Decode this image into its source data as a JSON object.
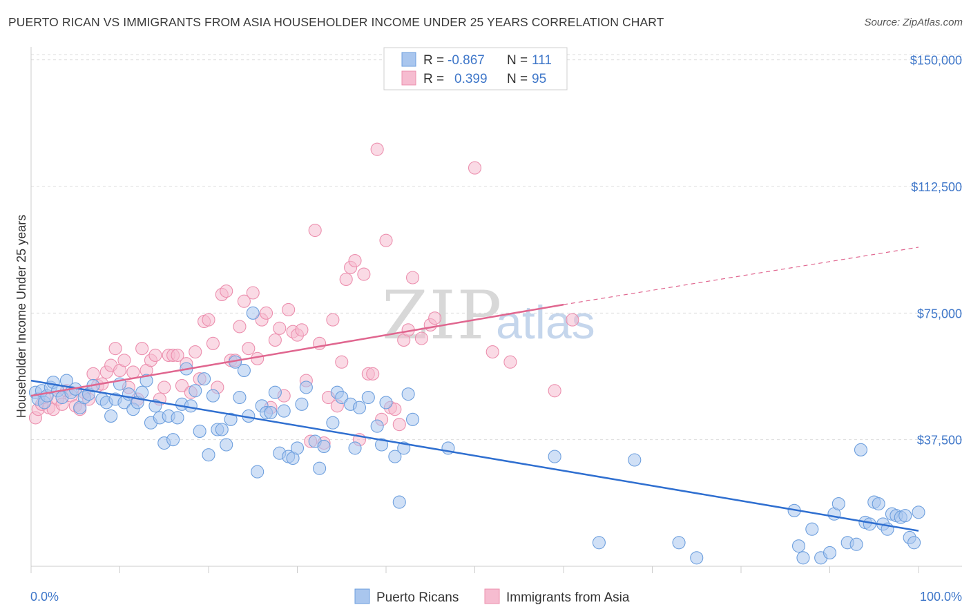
{
  "header": {
    "title": "PUERTO RICAN VS IMMIGRANTS FROM ASIA HOUSEHOLDER INCOME UNDER 25 YEARS CORRELATION CHART",
    "source": "Source: ZipAtlas.com"
  },
  "watermark": {
    "part1": "ZIP",
    "part2": "atlas"
  },
  "legend": {
    "rows": [
      {
        "r_label": "R =",
        "r_value": "-0.867",
        "n_label": "N =",
        "n_value": "111"
      },
      {
        "r_label": "R =",
        "r_value": "0.399",
        "n_label": "N =",
        "n_value": "95"
      }
    ]
  },
  "bottom_legend": {
    "series1": "Puerto Ricans",
    "series2": "Immigrants from Asia"
  },
  "chart_data": {
    "type": "scatter",
    "title": "PUERTO RICAN VS IMMIGRANTS FROM ASIA HOUSEHOLDER INCOME UNDER 25 YEARS CORRELATION CHART",
    "xlabel": "",
    "ylabel": "Householder Income Under 25 years",
    "xlim": [
      0,
      100
    ],
    "ylim": [
      0,
      153000
    ],
    "x_tick_labels": [
      "0.0%",
      "100.0%"
    ],
    "y_ticks": [
      37500,
      75000,
      112500,
      150000
    ],
    "y_tick_labels": [
      "$37,500",
      "$75,000",
      "$112,500",
      "$150,000"
    ],
    "grid": true,
    "colors": {
      "blue_fill": "#a9c6ee",
      "blue_stroke": "#6d9fde",
      "blue_line": "#2f6fd0",
      "pink_fill": "#f6bcd0",
      "pink_stroke": "#ec8fae",
      "pink_line": "#e0668f"
    },
    "series": [
      {
        "name": "Puerto Ricans",
        "color": "#6d9fde",
        "trend": {
          "x": [
            0,
            100
          ],
          "y": [
            55000,
            10500
          ]
        },
        "points": [
          [
            0.5,
            51500
          ],
          [
            0.8,
            49500
          ],
          [
            1.2,
            52000
          ],
          [
            1.5,
            48500
          ],
          [
            1.8,
            50500
          ],
          [
            2.2,
            53000
          ],
          [
            2.5,
            54500
          ],
          [
            3,
            52000
          ],
          [
            3.5,
            50000
          ],
          [
            4,
            55000
          ],
          [
            4.5,
            51500
          ],
          [
            5,
            52500
          ],
          [
            5.5,
            47000
          ],
          [
            6,
            50000
          ],
          [
            6.5,
            51000
          ],
          [
            7,
            53500
          ],
          [
            8,
            49500
          ],
          [
            8.5,
            48500
          ],
          [
            9,
            44500
          ],
          [
            9.5,
            49500
          ],
          [
            10,
            54000
          ],
          [
            10.5,
            48500
          ],
          [
            11,
            51000
          ],
          [
            11.5,
            46500
          ],
          [
            12,
            48500
          ],
          [
            12.5,
            51500
          ],
          [
            13,
            55000
          ],
          [
            13.5,
            42500
          ],
          [
            14,
            47500
          ],
          [
            14.5,
            44000
          ],
          [
            15,
            36500
          ],
          [
            15.5,
            44500
          ],
          [
            16,
            37500
          ],
          [
            16.5,
            44000
          ],
          [
            17,
            48000
          ],
          [
            17.5,
            58500
          ],
          [
            18,
            47500
          ],
          [
            18.5,
            52000
          ],
          [
            19,
            40000
          ],
          [
            19.5,
            55500
          ],
          [
            20,
            33000
          ],
          [
            20.5,
            50500
          ],
          [
            21,
            40500
          ],
          [
            21.5,
            40500
          ],
          [
            22,
            36000
          ],
          [
            22.5,
            43500
          ],
          [
            23,
            60500
          ],
          [
            23.5,
            50000
          ],
          [
            24,
            58000
          ],
          [
            24.5,
            44500
          ],
          [
            25,
            75000
          ],
          [
            25.5,
            28000
          ],
          [
            26,
            47500
          ],
          [
            26.5,
            45500
          ],
          [
            27,
            45500
          ],
          [
            27.5,
            51500
          ],
          [
            28,
            33500
          ],
          [
            28.5,
            46000
          ],
          [
            29,
            32500
          ],
          [
            29.5,
            32000
          ],
          [
            30,
            35000
          ],
          [
            30.5,
            48000
          ],
          [
            31,
            53000
          ],
          [
            32,
            37000
          ],
          [
            32.5,
            29000
          ],
          [
            33,
            35500
          ],
          [
            34,
            42500
          ],
          [
            34.5,
            51500
          ],
          [
            35,
            50000
          ],
          [
            36,
            48000
          ],
          [
            36.5,
            35000
          ],
          [
            37,
            47000
          ],
          [
            38,
            50000
          ],
          [
            39,
            41500
          ],
          [
            39.5,
            36000
          ],
          [
            40,
            48500
          ],
          [
            41,
            32500
          ],
          [
            41.5,
            19000
          ],
          [
            42,
            35000
          ],
          [
            42.5,
            51000
          ],
          [
            43,
            43500
          ],
          [
            47,
            35000
          ],
          [
            59,
            32500
          ],
          [
            64,
            7000
          ],
          [
            68,
            31500
          ],
          [
            73,
            7000
          ],
          [
            75,
            2500
          ],
          [
            86,
            16500
          ],
          [
            86.5,
            6000
          ],
          [
            87,
            2500
          ],
          [
            88,
            11000
          ],
          [
            89,
            2500
          ],
          [
            90,
            4000
          ],
          [
            90.5,
            15500
          ],
          [
            91,
            18500
          ],
          [
            92,
            7000
          ],
          [
            93,
            6500
          ],
          [
            93.5,
            34500
          ],
          [
            94,
            13000
          ],
          [
            94.5,
            12500
          ],
          [
            95,
            19000
          ],
          [
            95.5,
            18500
          ],
          [
            96,
            12500
          ],
          [
            96.5,
            11000
          ],
          [
            97,
            15500
          ],
          [
            97.5,
            15000
          ],
          [
            98,
            14500
          ],
          [
            98.5,
            15000
          ],
          [
            99,
            8500
          ],
          [
            99.5,
            7000
          ],
          [
            100,
            16000
          ]
        ]
      },
      {
        "name": "Immigrants from Asia",
        "color": "#ec8fae",
        "trend": {
          "x": [
            0,
            60
          ],
          "y": [
            50500,
            77500
          ]
        },
        "dashed_extension": {
          "x": [
            60,
            100
          ],
          "y": [
            77500,
            94500
          ]
        },
        "points": [
          [
            0.5,
            44000
          ],
          [
            0.8,
            46500
          ],
          [
            1.2,
            48000
          ],
          [
            1.5,
            50000
          ],
          [
            2,
            47000
          ],
          [
            2.5,
            46500
          ],
          [
            3,
            49500
          ],
          [
            3.5,
            48000
          ],
          [
            4,
            52000
          ],
          [
            4.5,
            50500
          ],
          [
            5,
            47500
          ],
          [
            5.5,
            46500
          ],
          [
            6,
            51500
          ],
          [
            6.5,
            49500
          ],
          [
            7,
            57000
          ],
          [
            7.5,
            53500
          ],
          [
            8,
            54000
          ],
          [
            8.5,
            57500
          ],
          [
            9,
            59500
          ],
          [
            9.5,
            64500
          ],
          [
            10,
            58000
          ],
          [
            10.5,
            61000
          ],
          [
            11,
            53000
          ],
          [
            11.5,
            57500
          ],
          [
            12,
            49500
          ],
          [
            12.5,
            64500
          ],
          [
            13,
            58000
          ],
          [
            13.5,
            61000
          ],
          [
            14,
            62500
          ],
          [
            14.5,
            49500
          ],
          [
            15,
            53000
          ],
          [
            15.5,
            62500
          ],
          [
            16,
            62500
          ],
          [
            16.5,
            62500
          ],
          [
            17,
            53500
          ],
          [
            17.5,
            60000
          ],
          [
            18,
            51500
          ],
          [
            18.5,
            63500
          ],
          [
            19,
            55500
          ],
          [
            19.5,
            72500
          ],
          [
            20,
            73000
          ],
          [
            20.5,
            66000
          ],
          [
            21,
            53000
          ],
          [
            21.5,
            80500
          ],
          [
            22,
            81500
          ],
          [
            22.5,
            61000
          ],
          [
            23,
            61000
          ],
          [
            23.5,
            71000
          ],
          [
            24,
            78500
          ],
          [
            24.5,
            64500
          ],
          [
            25,
            81000
          ],
          [
            25.5,
            61500
          ],
          [
            26,
            73000
          ],
          [
            26.5,
            75000
          ],
          [
            27,
            47000
          ],
          [
            27.5,
            67000
          ],
          [
            28,
            70500
          ],
          [
            28.5,
            50500
          ],
          [
            29,
            76000
          ],
          [
            29.5,
            69500
          ],
          [
            30,
            68500
          ],
          [
            30.5,
            70000
          ],
          [
            31,
            55000
          ],
          [
            31.5,
            37000
          ],
          [
            32,
            99500
          ],
          [
            32.5,
            66000
          ],
          [
            33,
            36500
          ],
          [
            33.5,
            50000
          ],
          [
            34,
            73000
          ],
          [
            34.5,
            47500
          ],
          [
            35,
            60500
          ],
          [
            35.5,
            85000
          ],
          [
            36,
            88500
          ],
          [
            36.5,
            90500
          ],
          [
            37,
            37500
          ],
          [
            37.5,
            86500
          ],
          [
            38,
            57000
          ],
          [
            38.5,
            57000
          ],
          [
            39,
            123500
          ],
          [
            39.5,
            43500
          ],
          [
            40,
            96500
          ],
          [
            40.5,
            47000
          ],
          [
            41,
            46500
          ],
          [
            41.5,
            42000
          ],
          [
            42,
            67000
          ],
          [
            42.5,
            70000
          ],
          [
            43,
            85500
          ],
          [
            44,
            67500
          ],
          [
            45,
            71500
          ],
          [
            45.5,
            73500
          ],
          [
            50,
            118000
          ],
          [
            52,
            63500
          ],
          [
            54,
            60500
          ],
          [
            59,
            52000
          ],
          [
            61,
            73000
          ]
        ]
      }
    ]
  }
}
